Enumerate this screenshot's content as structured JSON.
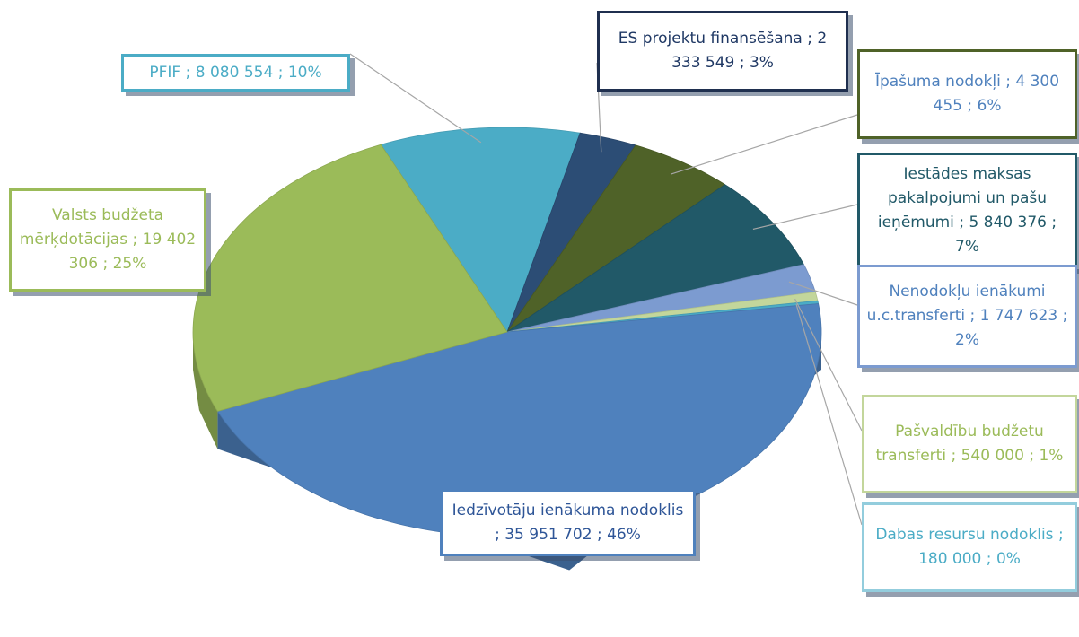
{
  "chart_data": {
    "type": "pie",
    "three_d": true,
    "label_separator": ";",
    "categories": [
      "PFIF",
      "ES projektu finansēšana",
      "Īpašuma nodokļi",
      "Iestādes maksas pakalpojumi un pašu ieņēmumi",
      "Nenodokļu ienākumi u.c.transferti",
      "Pašvaldību budžetu transferti",
      "Dabas resursu nodoklis",
      "Iedzīvotāju ienākuma nodoklis",
      "Valsts budžeta mērķdotācijas"
    ],
    "values": [
      8080554,
      2333549,
      4300455,
      5840376,
      1747623,
      540000,
      180000,
      35951702,
      19402306
    ],
    "value_labels": [
      "8 080 554",
      "2 333 549",
      "4 300 455",
      "5 840 376",
      "1 747 623",
      "540 000",
      "180 000",
      "35 951 702",
      "19 402 306"
    ],
    "percentages": [
      10,
      3,
      6,
      7,
      2,
      1,
      0,
      46,
      25
    ],
    "percentage_labels": [
      "10%",
      "3%",
      "6%",
      "7%",
      "2%",
      "1%",
      "0%",
      "46%",
      "25%"
    ],
    "colors": [
      "#4bacc6",
      "#2c4d75",
      "#4f6228",
      "#215968",
      "#7c9bd0",
      "#c3d69b",
      "#4bacc6",
      "#4f81bd",
      "#9bbb59"
    ]
  }
}
